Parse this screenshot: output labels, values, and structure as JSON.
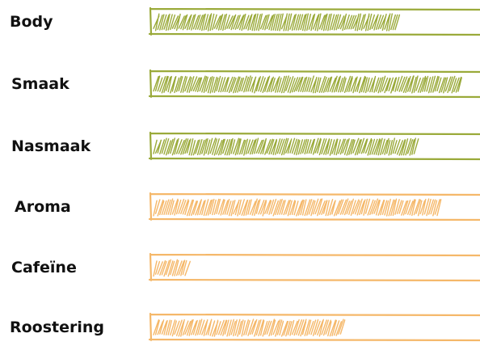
{
  "ratings": [
    {
      "label": "Body",
      "level": 0.73,
      "color": "#9aaa3a"
    },
    {
      "label": "Smaak",
      "level": 0.92,
      "color": "#9aaa3a"
    },
    {
      "label": "Nasmaak",
      "level": 0.79,
      "color": "#9aaa3a"
    },
    {
      "label": "Aroma",
      "level": 0.86,
      "color": "#f5b86a"
    },
    {
      "label": "Cafeïne",
      "level": 0.1,
      "color": "#f5b86a"
    },
    {
      "label": "Roostering",
      "level": 0.57,
      "color": "#f5b86a"
    }
  ]
}
